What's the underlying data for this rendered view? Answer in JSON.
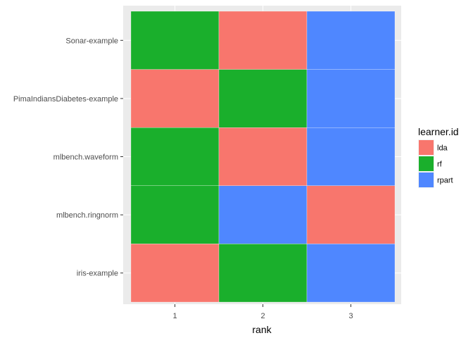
{
  "chart_data": {
    "type": "heatmap",
    "title": "",
    "xlabel": "rank",
    "ylabel": "",
    "x": [
      1,
      2,
      3
    ],
    "y": [
      "Sonar-example",
      "PimaIndiansDiabetes-example",
      "mlbench.waveform",
      "mlbench.ringnorm",
      "iris-example"
    ],
    "cells": [
      [
        "rf",
        "lda",
        "rpart"
      ],
      [
        "lda",
        "rf",
        "rpart"
      ],
      [
        "rf",
        "lda",
        "rpart"
      ],
      [
        "rf",
        "rpart",
        "lda"
      ],
      [
        "lda",
        "rf",
        "rpart"
      ]
    ],
    "legend": {
      "title": "learner.id",
      "position": "right",
      "entries": [
        {
          "label": "lda",
          "color": "#F8766D"
        },
        {
          "label": "rf",
          "color": "#1AAF2C"
        },
        {
          "label": "rpart",
          "color": "#4F87FF"
        }
      ]
    },
    "panel_background": "#EBEBEB",
    "grid": true
  }
}
